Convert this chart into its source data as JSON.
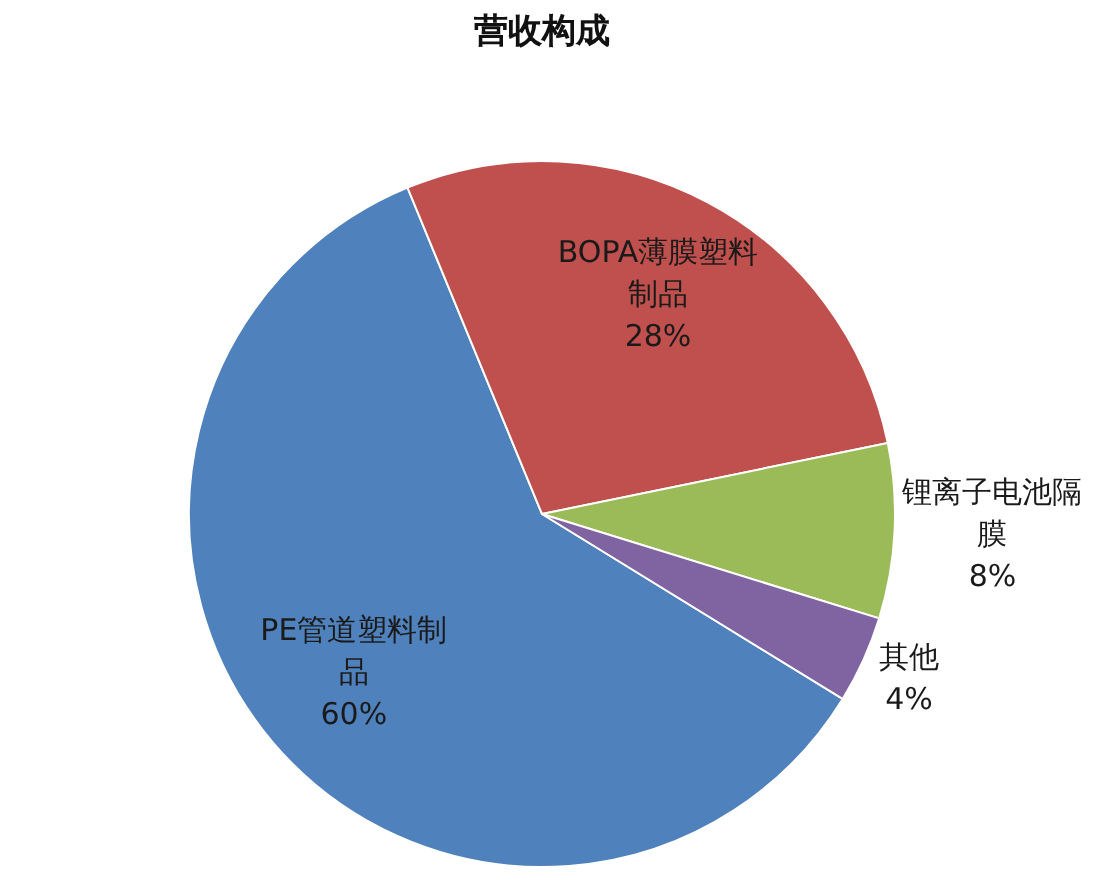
{
  "chart_data": {
    "type": "pie",
    "title": "营收构成",
    "categories": [
      "PE管道塑料制品",
      "BOPA薄膜塑料制品",
      "锂离子电池隔膜",
      "其他"
    ],
    "values": [
      60,
      28,
      8,
      4
    ],
    "colors": [
      "#4f81bd",
      "#c0504d",
      "#9bbb59",
      "#8064a2"
    ],
    "value_labels": [
      "60%",
      "28%",
      "8%",
      "4%"
    ]
  }
}
